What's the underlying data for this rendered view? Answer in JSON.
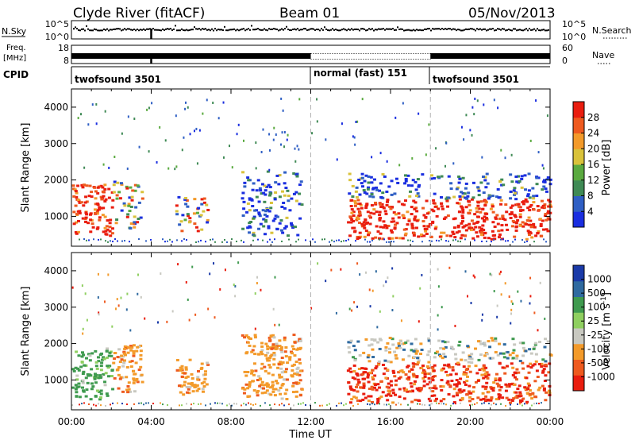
{
  "header": {
    "station": "Clyde River (fitACF)",
    "beam": "Beam 01",
    "date": "05/Nov/2013"
  },
  "colors": {
    "power_scale": [
      "#1a2ee0",
      "#2f5fc4",
      "#3f8a55",
      "#5aaa3f",
      "#d9c23a",
      "#f39a2a",
      "#ee5a1f",
      "#e91d0f"
    ],
    "velocity_scale": [
      "#e91d0f",
      "#ee5a1f",
      "#f39a2a",
      "#c8c8c0",
      "#8fcf60",
      "#3f9a4f",
      "#2f6aa0",
      "#1a3aa8"
    ],
    "divider": "#b4b4b4"
  },
  "panels": {
    "sky": {
      "left_label": "N.Sky",
      "left_ticks": [
        "10^5",
        "10^0"
      ],
      "right_label": "N.Search",
      "right_ticks": [
        "10^5",
        "10^0"
      ]
    },
    "freq": {
      "left_label_1": "Freq.",
      "left_label_2": "[MHz]",
      "left_ticks": [
        "18",
        "8"
      ],
      "right_label": "Nave",
      "right_ticks": [
        "60",
        "0"
      ]
    },
    "cpid": {
      "label": "CPID",
      "segments": [
        "twofsound 3501",
        "normal (fast) 151",
        "twofsound 3501"
      ]
    }
  },
  "chart_data": [
    {
      "type": "heatmap",
      "title": "",
      "xlabel": "",
      "ylabel": "Slant Range [km]",
      "x_ticks": [
        "00:00",
        "04:00",
        "08:00",
        "12:00",
        "16:00",
        "20:00",
        "00:00"
      ],
      "xlim_hours": [
        0,
        24
      ],
      "y_ticks": [
        1000,
        2000,
        3000,
        4000
      ],
      "ylim_km": [
        180,
        4500
      ],
      "colorbar": {
        "label": "Power [dB]",
        "ticks": [
          4,
          8,
          12,
          16,
          20,
          24,
          28
        ],
        "range": [
          0,
          32
        ]
      },
      "dividers_hours": [
        12,
        18
      ],
      "scatter_regions": [
        {
          "t": [
            0.0,
            2.0
          ],
          "range_km": [
            500,
            1900
          ],
          "level": "high"
        },
        {
          "t": [
            2.0,
            3.5
          ],
          "range_km": [
            700,
            2000
          ],
          "level": "mixed"
        },
        {
          "t": [
            5.2,
            6.8
          ],
          "range_km": [
            600,
            1600
          ],
          "level": "mixed"
        },
        {
          "t": [
            8.5,
            11.5
          ],
          "range_km": [
            500,
            2300
          ],
          "level": "low"
        },
        {
          "t": [
            13.8,
            24.0
          ],
          "range_km": [
            400,
            1500
          ],
          "level": "high"
        },
        {
          "t": [
            13.8,
            24.0
          ],
          "range_km": [
            1500,
            2200
          ],
          "level": "low"
        }
      ]
    },
    {
      "type": "heatmap",
      "title": "",
      "xlabel": "Time UT",
      "ylabel": "Slant Range [km]",
      "x_ticks": [
        "00:00",
        "04:00",
        "08:00",
        "12:00",
        "16:00",
        "20:00",
        "00:00"
      ],
      "xlim_hours": [
        0,
        24
      ],
      "y_ticks": [
        1000,
        2000,
        3000,
        4000
      ],
      "ylim_km": [
        180,
        4500
      ],
      "colorbar": {
        "label": "Velocity [m s^-1]",
        "ticks": [
          -1000,
          -500,
          -100,
          -25,
          25,
          100,
          500,
          1000
        ]
      },
      "dividers_hours": [
        12,
        18
      ],
      "scatter_regions": [
        {
          "t": [
            0.0,
            2.0
          ],
          "range_km": [
            500,
            1900
          ],
          "level": "positive"
        },
        {
          "t": [
            2.0,
            3.5
          ],
          "range_km": [
            700,
            2000
          ],
          "level": "negative"
        },
        {
          "t": [
            5.2,
            6.8
          ],
          "range_km": [
            600,
            1600
          ],
          "level": "negative"
        },
        {
          "t": [
            8.5,
            11.5
          ],
          "range_km": [
            500,
            2300
          ],
          "level": "negative"
        },
        {
          "t": [
            13.8,
            24.0
          ],
          "range_km": [
            400,
            1500
          ],
          "level": "strong-negative"
        },
        {
          "t": [
            13.8,
            24.0
          ],
          "range_km": [
            1500,
            2200
          ],
          "level": "mixed"
        }
      ]
    }
  ]
}
